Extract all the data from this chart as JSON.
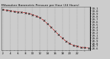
{
  "title": "Milwaukee Barometric Pressure per Hour (24 Hours)",
  "hours": [
    0,
    1,
    2,
    3,
    4,
    5,
    6,
    7,
    8,
    9,
    10,
    11,
    12,
    13,
    14,
    15,
    16,
    17,
    18,
    19,
    20,
    21,
    22,
    23
  ],
  "pressure": [
    30.05,
    30.03,
    30.01,
    29.99,
    29.97,
    29.96,
    29.94,
    29.91,
    29.87,
    29.82,
    29.75,
    29.65,
    29.53,
    29.4,
    29.26,
    29.12,
    28.99,
    28.88,
    28.79,
    28.73,
    28.69,
    28.66,
    28.64,
    28.63
  ],
  "line_color": "#dd0000",
  "marker_color": "#111111",
  "bg_color": "#cccccc",
  "plot_bg_color": "#cccccc",
  "grid_color": "#888888",
  "ylim_min": 28.55,
  "ylim_max": 30.15,
  "ytick_values": [
    28.6,
    28.7,
    28.8,
    28.9,
    29.0,
    29.1,
    29.2,
    29.3,
    29.4,
    29.5,
    29.6,
    29.7,
    29.8,
    29.9,
    30.0,
    30.1
  ],
  "ylabel_fontsize": 2.8,
  "title_fontsize": 3.2,
  "xlabel_fontsize": 2.8,
  "xtick_step": 2
}
